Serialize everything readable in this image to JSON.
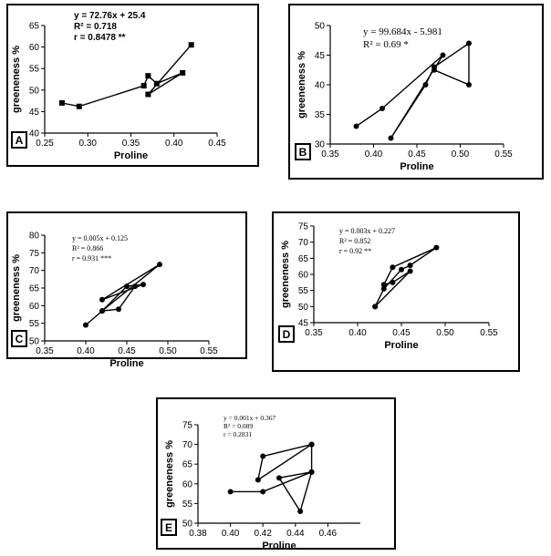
{
  "chart_data": [
    {
      "type": "scatter",
      "panel_label": "A",
      "xlabel": "Proline",
      "ylabel": "greeneness %",
      "xlim": [
        0.25,
        0.45
      ],
      "ylim": [
        40,
        65
      ],
      "xticks": [
        "0.25",
        "0.30",
        "0.35",
        "0.40",
        "0.45"
      ],
      "yticks": [
        "40",
        "45",
        "50",
        "55",
        "60",
        "65"
      ],
      "marker": "square",
      "connected": true,
      "annotations": [
        "y = 72.76x + 25.4",
        "R² = 0.718",
        "r = 0.8478 **"
      ],
      "points": [
        {
          "x": 0.27,
          "y": 47.0
        },
        {
          "x": 0.29,
          "y": 46.2
        },
        {
          "x": 0.365,
          "y": 51.0
        },
        {
          "x": 0.37,
          "y": 53.3
        },
        {
          "x": 0.38,
          "y": 51.5
        },
        {
          "x": 0.41,
          "y": 54.0
        },
        {
          "x": 0.37,
          "y": 49.0
        },
        {
          "x": 0.42,
          "y": 60.5
        }
      ]
    },
    {
      "type": "scatter",
      "panel_label": "B",
      "xlabel": "Proline",
      "ylabel": "greeneness %",
      "xlim": [
        0.35,
        0.55
      ],
      "ylim": [
        30,
        50
      ],
      "xticks": [
        "0.35",
        "0.40",
        "0.45",
        "0.50",
        "0.55"
      ],
      "yticks": [
        "30",
        "35",
        "40",
        "45",
        "50"
      ],
      "marker": "circle",
      "connected": true,
      "annotations": [
        "y = 99.684x - 5.981",
        "R² = 0.69 *"
      ],
      "points": [
        {
          "x": 0.38,
          "y": 33.0
        },
        {
          "x": 0.41,
          "y": 36.0
        },
        {
          "x": 0.48,
          "y": 45.0
        },
        {
          "x": 0.42,
          "y": 31.0
        },
        {
          "x": 0.46,
          "y": 40.0
        },
        {
          "x": 0.47,
          "y": 43.0
        },
        {
          "x": 0.51,
          "y": 47.0
        },
        {
          "x": 0.51,
          "y": 40.0
        },
        {
          "x": 0.47,
          "y": 42.5
        }
      ]
    },
    {
      "type": "scatter",
      "panel_label": "C",
      "xlabel": "Proline",
      "ylabel": "greeneness %",
      "xlim": [
        0.35,
        0.55
      ],
      "ylim": [
        50,
        80
      ],
      "xticks": [
        "0.35",
        "0.40",
        "0.45",
        "0.50",
        "0.55"
      ],
      "yticks": [
        "50",
        "55",
        "60",
        "65",
        "70",
        "75",
        "80"
      ],
      "marker": "circle",
      "connected": true,
      "annotations": [
        "y = 0.005x + 0.125",
        "R² = 0.866",
        "r = 0.931 ***"
      ],
      "points": [
        {
          "x": 0.4,
          "y": 54.5
        },
        {
          "x": 0.42,
          "y": 58.5
        },
        {
          "x": 0.45,
          "y": 65.5
        },
        {
          "x": 0.47,
          "y": 66.0
        },
        {
          "x": 0.42,
          "y": 61.7
        },
        {
          "x": 0.49,
          "y": 71.7
        },
        {
          "x": 0.42,
          "y": 58.5
        },
        {
          "x": 0.44,
          "y": 59.0
        },
        {
          "x": 0.46,
          "y": 65.5
        }
      ]
    },
    {
      "type": "scatter",
      "panel_label": "D",
      "xlabel": "Proline",
      "ylabel": "greeneness %",
      "xlim": [
        0.35,
        0.55
      ],
      "ylim": [
        45,
        75
      ],
      "xticks": [
        "0.35",
        "0.40",
        "0.45",
        "0.50",
        "0.55"
      ],
      "yticks": [
        "45",
        "50",
        "55",
        "60",
        "65",
        "70",
        "75"
      ],
      "marker": "circle",
      "connected": true,
      "annotations": [
        "y = 0.003x + 0.227",
        "R² = 0.852",
        "r = 0.92 **"
      ],
      "points": [
        {
          "x": 0.42,
          "y": 50.0
        },
        {
          "x": 0.43,
          "y": 55.5
        },
        {
          "x": 0.45,
          "y": 61.5
        },
        {
          "x": 0.46,
          "y": 62.8
        },
        {
          "x": 0.49,
          "y": 68.3
        },
        {
          "x": 0.44,
          "y": 62.2
        },
        {
          "x": 0.43,
          "y": 56.8
        },
        {
          "x": 0.44,
          "y": 57.5
        },
        {
          "x": 0.46,
          "y": 61.0
        },
        {
          "x": 0.42,
          "y": 50.0
        }
      ]
    },
    {
      "type": "scatter",
      "panel_label": "E",
      "xlabel": "Proline",
      "ylabel": "greeneness %",
      "xlim": [
        0.38,
        0.48
      ],
      "ylim": [
        50,
        75
      ],
      "xticks": [
        "0.38",
        "0.40",
        "0.42",
        "0.44",
        "0.46"
      ],
      "yticks": [
        "50",
        "55",
        "60",
        "65",
        "70",
        "75"
      ],
      "marker": "circle",
      "connected": true,
      "annotations": [
        "y = 0.001x + 0.367",
        "R² = 0.089",
        "r = 0.2831"
      ],
      "points": [
        {
          "x": 0.4,
          "y": 58.0
        },
        {
          "x": 0.42,
          "y": 58.0
        },
        {
          "x": 0.45,
          "y": 63.0
        },
        {
          "x": 0.43,
          "y": 61.5
        },
        {
          "x": 0.443,
          "y": 53.0
        },
        {
          "x": 0.45,
          "y": 63.0
        },
        {
          "x": 0.45,
          "y": 70.0
        },
        {
          "x": 0.417,
          "y": 61.0
        },
        {
          "x": 0.42,
          "y": 67.0
        },
        {
          "x": 0.45,
          "y": 70.0
        }
      ]
    }
  ]
}
